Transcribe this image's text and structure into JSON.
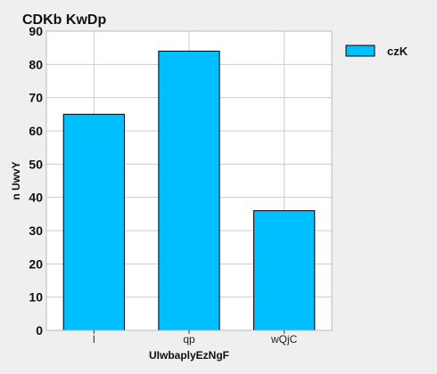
{
  "chart_data": {
    "type": "bar",
    "title": "CDKb KwDp",
    "xlabel": "UIwbaplyEzNgF",
    "ylabel": "n UwvY",
    "categories": [
      "l",
      "qp",
      "wQjC"
    ],
    "series": [
      {
        "name": "czK",
        "values": [
          65,
          84,
          36
        ]
      }
    ],
    "ylim": [
      0,
      90
    ],
    "yticks": [
      0,
      10,
      20,
      30,
      40,
      50,
      60,
      70,
      80,
      90
    ],
    "grid": true,
    "legend_position": "top-right",
    "colors": {
      "bar_fill": "#00bfff",
      "bar_stroke": "#000000",
      "plot_background": "#ffffff",
      "page_background": "#efefef",
      "grid": "#cccccc"
    }
  }
}
